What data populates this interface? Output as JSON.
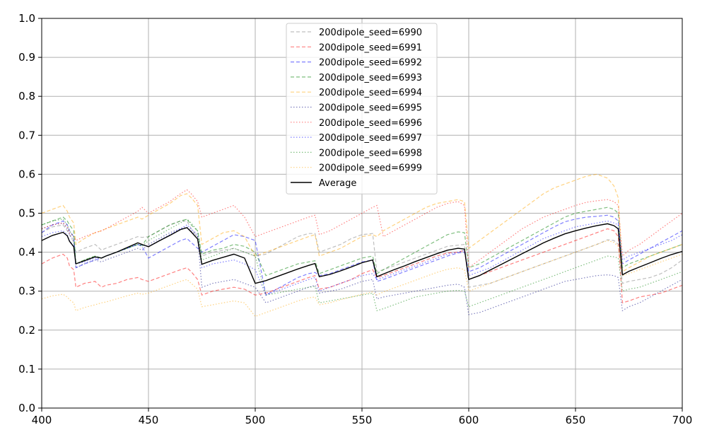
{
  "chart_data": {
    "type": "line",
    "title": "",
    "xlabel": "",
    "ylabel": "",
    "xlim": [
      400,
      700
    ],
    "ylim": [
      0.0,
      1.0
    ],
    "grid": true,
    "legend_position": "upper-center",
    "x_ticks": [
      "400",
      "450",
      "500",
      "550",
      "600",
      "650",
      "700"
    ],
    "y_ticks": [
      "0.0",
      "0.1",
      "0.2",
      "0.3",
      "0.4",
      "0.5",
      "0.6",
      "0.7",
      "0.8",
      "0.9",
      "1.0"
    ],
    "x": [
      400,
      405,
      410,
      412,
      413,
      415,
      416,
      420,
      425,
      428,
      430,
      435,
      440,
      445,
      447,
      450,
      455,
      460,
      465,
      468,
      470,
      473,
      475,
      480,
      485,
      490,
      495,
      500,
      505,
      510,
      515,
      520,
      525,
      528,
      530,
      535,
      540,
      545,
      550,
      555,
      557,
      560,
      565,
      570,
      575,
      580,
      585,
      590,
      595,
      598,
      600,
      605,
      610,
      615,
      620,
      625,
      630,
      635,
      640,
      645,
      650,
      655,
      660,
      665,
      668,
      670,
      672,
      675,
      680,
      685,
      690,
      695,
      700
    ],
    "series": [
      {
        "name": "200dipole_seed=6990",
        "color": "#808080",
        "dash": "dashed",
        "values": [
          0.45,
          0.465,
          0.47,
          0.455,
          0.445,
          0.425,
          0.4,
          0.41,
          0.42,
          0.405,
          0.41,
          0.42,
          0.43,
          0.44,
          0.438,
          0.44,
          0.455,
          0.47,
          0.48,
          0.48,
          0.46,
          0.44,
          0.39,
          0.4,
          0.405,
          0.41,
          0.4,
          0.39,
          0.395,
          0.41,
          0.425,
          0.44,
          0.448,
          0.448,
          0.4,
          0.41,
          0.42,
          0.435,
          0.445,
          0.448,
          0.35,
          0.355,
          0.365,
          0.375,
          0.385,
          0.395,
          0.405,
          0.415,
          0.418,
          0.42,
          0.31,
          0.315,
          0.32,
          0.33,
          0.34,
          0.35,
          0.36,
          0.37,
          0.38,
          0.39,
          0.4,
          0.41,
          0.42,
          0.432,
          0.43,
          0.42,
          0.32,
          0.325,
          0.33,
          0.335,
          0.345,
          0.36,
          0.38
        ]
      },
      {
        "name": "200dipole_seed=6991",
        "color": "#ff0000",
        "dash": "dashed",
        "values": [
          0.37,
          0.385,
          0.395,
          0.385,
          0.365,
          0.355,
          0.31,
          0.32,
          0.325,
          0.31,
          0.315,
          0.32,
          0.33,
          0.335,
          0.33,
          0.325,
          0.335,
          0.345,
          0.355,
          0.36,
          0.35,
          0.33,
          0.29,
          0.3,
          0.305,
          0.31,
          0.305,
          0.29,
          0.295,
          0.305,
          0.315,
          0.325,
          0.335,
          0.34,
          0.305,
          0.31,
          0.32,
          0.33,
          0.345,
          0.355,
          0.335,
          0.34,
          0.35,
          0.36,
          0.37,
          0.38,
          0.39,
          0.398,
          0.4,
          0.405,
          0.33,
          0.34,
          0.35,
          0.36,
          0.37,
          0.38,
          0.39,
          0.4,
          0.41,
          0.42,
          0.43,
          0.44,
          0.45,
          0.46,
          0.455,
          0.44,
          0.27,
          0.275,
          0.285,
          0.29,
          0.295,
          0.305,
          0.315
        ]
      },
      {
        "name": "200dipole_seed=6992",
        "color": "#0000ff",
        "dash": "dashed",
        "values": [
          0.45,
          0.47,
          0.48,
          0.47,
          0.455,
          0.44,
          0.36,
          0.37,
          0.38,
          0.385,
          0.39,
          0.4,
          0.41,
          0.42,
          0.415,
          0.385,
          0.4,
          0.415,
          0.43,
          0.435,
          0.425,
          0.41,
          0.4,
          0.415,
          0.43,
          0.445,
          0.44,
          0.43,
          0.29,
          0.305,
          0.32,
          0.335,
          0.345,
          0.348,
          0.34,
          0.345,
          0.355,
          0.365,
          0.375,
          0.38,
          0.325,
          0.33,
          0.34,
          0.35,
          0.36,
          0.37,
          0.38,
          0.39,
          0.398,
          0.4,
          0.35,
          0.36,
          0.375,
          0.39,
          0.405,
          0.42,
          0.435,
          0.45,
          0.465,
          0.478,
          0.485,
          0.49,
          0.492,
          0.495,
          0.49,
          0.48,
          0.37,
          0.38,
          0.395,
          0.41,
          0.425,
          0.44,
          0.455
        ]
      },
      {
        "name": "200dipole_seed=6993",
        "color": "#008000",
        "dash": "dashed",
        "values": [
          0.47,
          0.48,
          0.49,
          0.48,
          0.47,
          0.455,
          0.37,
          0.38,
          0.39,
          0.385,
          0.39,
          0.4,
          0.41,
          0.42,
          0.418,
          0.44,
          0.455,
          0.47,
          0.48,
          0.485,
          0.47,
          0.455,
          0.395,
          0.405,
          0.41,
          0.42,
          0.415,
          0.4,
          0.34,
          0.35,
          0.36,
          0.37,
          0.375,
          0.378,
          0.345,
          0.355,
          0.365,
          0.375,
          0.385,
          0.39,
          0.345,
          0.355,
          0.37,
          0.385,
          0.4,
          0.415,
          0.43,
          0.445,
          0.452,
          0.45,
          0.36,
          0.37,
          0.385,
          0.4,
          0.415,
          0.43,
          0.445,
          0.46,
          0.475,
          0.49,
          0.5,
          0.505,
          0.51,
          0.515,
          0.51,
          0.5,
          0.36,
          0.37,
          0.38,
          0.39,
          0.4,
          0.41,
          0.42
        ]
      },
      {
        "name": "200dipole_seed=6994",
        "color": "#ffa500",
        "dash": "dashed",
        "values": [
          0.5,
          0.51,
          0.52,
          0.505,
          0.49,
          0.475,
          0.42,
          0.435,
          0.45,
          0.455,
          0.46,
          0.47,
          0.48,
          0.49,
          0.485,
          0.495,
          0.51,
          0.525,
          0.545,
          0.55,
          0.54,
          0.52,
          0.42,
          0.435,
          0.45,
          0.455,
          0.44,
          0.39,
          0.4,
          0.41,
          0.42,
          0.43,
          0.44,
          0.445,
          0.39,
          0.4,
          0.41,
          0.425,
          0.44,
          0.445,
          0.44,
          0.455,
          0.47,
          0.485,
          0.5,
          0.515,
          0.525,
          0.53,
          0.535,
          0.53,
          0.41,
          0.43,
          0.45,
          0.47,
          0.49,
          0.51,
          0.53,
          0.55,
          0.565,
          0.575,
          0.585,
          0.595,
          0.6,
          0.59,
          0.57,
          0.54,
          0.35,
          0.36,
          0.375,
          0.39,
          0.4,
          0.41,
          0.42
        ]
      },
      {
        "name": "200dipole_seed=6995",
        "color": "#000080",
        "dash": "dotted",
        "values": [
          0.46,
          0.47,
          0.475,
          0.46,
          0.445,
          0.43,
          0.36,
          0.37,
          0.38,
          0.375,
          0.38,
          0.39,
          0.4,
          0.41,
          0.405,
          0.42,
          0.435,
          0.45,
          0.46,
          0.465,
          0.455,
          0.44,
          0.31,
          0.32,
          0.325,
          0.33,
          0.32,
          0.31,
          0.27,
          0.28,
          0.29,
          0.3,
          0.31,
          0.315,
          0.295,
          0.3,
          0.305,
          0.315,
          0.325,
          0.33,
          0.28,
          0.285,
          0.29,
          0.295,
          0.3,
          0.305,
          0.31,
          0.315,
          0.318,
          0.31,
          0.24,
          0.245,
          0.255,
          0.265,
          0.275,
          0.285,
          0.295,
          0.305,
          0.315,
          0.325,
          0.33,
          0.335,
          0.34,
          0.342,
          0.34,
          0.335,
          0.25,
          0.26,
          0.27,
          0.285,
          0.3,
          0.315,
          0.33
        ]
      },
      {
        "name": "200dipole_seed=6996",
        "color": "#ff0000",
        "dash": "dotted",
        "values": [
          0.46,
          0.47,
          0.475,
          0.465,
          0.45,
          0.44,
          0.43,
          0.44,
          0.45,
          0.455,
          0.46,
          0.475,
          0.49,
          0.505,
          0.515,
          0.5,
          0.515,
          0.53,
          0.55,
          0.56,
          0.55,
          0.53,
          0.49,
          0.5,
          0.51,
          0.52,
          0.49,
          0.44,
          0.45,
          0.46,
          0.47,
          0.48,
          0.49,
          0.495,
          0.445,
          0.455,
          0.47,
          0.485,
          0.5,
          0.515,
          0.52,
          0.44,
          0.455,
          0.47,
          0.485,
          0.5,
          0.515,
          0.525,
          0.53,
          0.52,
          0.36,
          0.38,
          0.4,
          0.42,
          0.44,
          0.46,
          0.475,
          0.49,
          0.5,
          0.51,
          0.52,
          0.528,
          0.532,
          0.535,
          0.53,
          0.52,
          0.39,
          0.405,
          0.42,
          0.44,
          0.46,
          0.48,
          0.5
        ]
      },
      {
        "name": "200dipole_seed=6997",
        "color": "#0000ff",
        "dash": "dotted",
        "values": [
          0.44,
          0.45,
          0.455,
          0.445,
          0.43,
          0.415,
          0.37,
          0.375,
          0.385,
          0.385,
          0.39,
          0.4,
          0.41,
          0.42,
          0.418,
          0.415,
          0.43,
          0.445,
          0.46,
          0.47,
          0.46,
          0.445,
          0.36,
          0.37,
          0.375,
          0.38,
          0.37,
          0.355,
          0.29,
          0.3,
          0.31,
          0.32,
          0.33,
          0.335,
          0.3,
          0.31,
          0.32,
          0.33,
          0.34,
          0.345,
          0.33,
          0.335,
          0.345,
          0.355,
          0.365,
          0.375,
          0.385,
          0.395,
          0.4,
          0.405,
          0.34,
          0.35,
          0.36,
          0.375,
          0.39,
          0.405,
          0.42,
          0.435,
          0.445,
          0.455,
          0.465,
          0.47,
          0.475,
          0.48,
          0.475,
          0.47,
          0.38,
          0.39,
          0.4,
          0.41,
          0.42,
          0.43,
          0.445
        ]
      },
      {
        "name": "200dipole_seed=6998",
        "color": "#008000",
        "dash": "dotted",
        "values": [
          0.47,
          0.48,
          0.485,
          0.47,
          0.455,
          0.44,
          0.37,
          0.38,
          0.39,
          0.385,
          0.39,
          0.4,
          0.41,
          0.42,
          0.415,
          0.43,
          0.445,
          0.46,
          0.475,
          0.485,
          0.475,
          0.455,
          0.38,
          0.39,
          0.4,
          0.41,
          0.4,
          0.39,
          0.29,
          0.295,
          0.3,
          0.305,
          0.31,
          0.312,
          0.27,
          0.275,
          0.28,
          0.285,
          0.29,
          0.295,
          0.25,
          0.255,
          0.265,
          0.275,
          0.285,
          0.29,
          0.295,
          0.3,
          0.302,
          0.3,
          0.26,
          0.27,
          0.28,
          0.29,
          0.3,
          0.31,
          0.32,
          0.33,
          0.34,
          0.35,
          0.36,
          0.37,
          0.38,
          0.39,
          0.388,
          0.385,
          0.3,
          0.305,
          0.31,
          0.32,
          0.33,
          0.34,
          0.35
        ]
      },
      {
        "name": "200dipole_seed=6999",
        "color": "#ffa500",
        "dash": "dotted",
        "values": [
          0.28,
          0.288,
          0.292,
          0.285,
          0.278,
          0.27,
          0.25,
          0.258,
          0.265,
          0.27,
          0.272,
          0.28,
          0.288,
          0.295,
          0.292,
          0.295,
          0.305,
          0.315,
          0.325,
          0.33,
          0.32,
          0.305,
          0.26,
          0.265,
          0.27,
          0.275,
          0.27,
          0.235,
          0.245,
          0.255,
          0.265,
          0.275,
          0.283,
          0.285,
          0.265,
          0.27,
          0.278,
          0.285,
          0.292,
          0.298,
          0.29,
          0.298,
          0.308,
          0.318,
          0.328,
          0.338,
          0.348,
          0.356,
          0.36,
          0.355,
          0.3,
          0.31,
          0.32,
          0.33,
          0.34,
          0.35,
          0.36,
          0.37,
          0.38,
          0.39,
          0.4,
          0.41,
          0.42,
          0.43,
          0.425,
          0.415,
          0.34,
          0.345,
          0.355,
          0.365,
          0.375,
          0.385,
          0.395
        ]
      },
      {
        "name": "Average",
        "color": "#000000",
        "dash": "solid",
        "values": [
          0.43,
          0.443,
          0.451,
          0.442,
          0.428,
          0.414,
          0.37,
          0.378,
          0.388,
          0.385,
          0.39,
          0.4,
          0.412,
          0.424,
          0.42,
          0.414,
          0.429,
          0.443,
          0.458,
          0.463,
          0.452,
          0.434,
          0.369,
          0.379,
          0.387,
          0.395,
          0.385,
          0.32,
          0.327,
          0.337,
          0.347,
          0.357,
          0.366,
          0.371,
          0.337,
          0.343,
          0.352,
          0.362,
          0.373,
          0.38,
          0.337,
          0.344,
          0.355,
          0.365,
          0.376,
          0.386,
          0.396,
          0.405,
          0.41,
          0.408,
          0.33,
          0.34,
          0.354,
          0.368,
          0.382,
          0.396,
          0.41,
          0.424,
          0.436,
          0.447,
          0.455,
          0.462,
          0.468,
          0.473,
          0.468,
          0.46,
          0.342,
          0.351,
          0.362,
          0.373,
          0.384,
          0.394,
          0.402
        ]
      }
    ]
  }
}
